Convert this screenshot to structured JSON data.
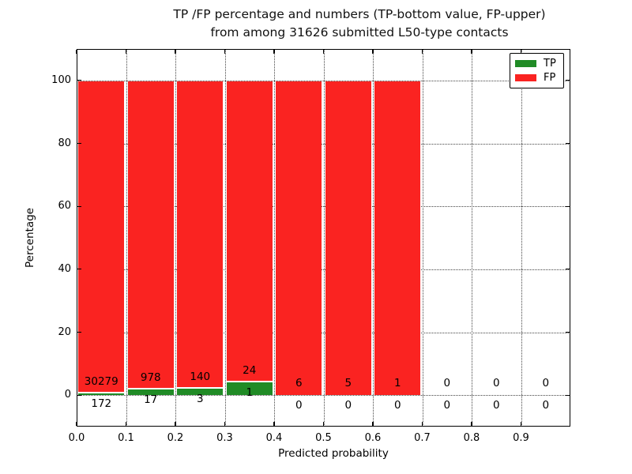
{
  "figure": {
    "title_line1": "TP /FP percentage and numbers (TP-bottom value, FP-upper)",
    "title_line2": "from among 31626 submitted L50-type contacts"
  },
  "chart_data": {
    "type": "bar",
    "stacked": true,
    "title": "TP /FP percentage and numbers (TP-bottom value, FP-upper)\nfrom among 31626 submitted L50-type contacts",
    "xlabel": "Predicted probability",
    "ylabel": "Percentage",
    "total_submitted": 31626,
    "xlim": [
      0.0,
      1.0
    ],
    "ylim": [
      -10,
      110
    ],
    "grid": "dotted",
    "legend_position": "upper right",
    "xtick_labels": [
      "0.0",
      "0.1",
      "0.2",
      "0.3",
      "0.4",
      "0.5",
      "0.6",
      "0.7",
      "0.8",
      "0.9"
    ],
    "xtick_values": [
      0.0,
      0.1,
      0.2,
      0.3,
      0.4,
      0.5,
      0.6,
      0.7,
      0.8,
      0.9
    ],
    "ytick_labels": [
      "0",
      "20",
      "40",
      "60",
      "80",
      "100"
    ],
    "ytick_values": [
      0,
      20,
      40,
      60,
      80,
      100
    ],
    "bin_width": 0.1,
    "bins": [
      {
        "range": "0.0-0.1",
        "tp": 172,
        "fp": 30279
      },
      {
        "range": "0.1-0.2",
        "tp": 17,
        "fp": 978
      },
      {
        "range": "0.2-0.3",
        "tp": 3,
        "fp": 140
      },
      {
        "range": "0.3-0.4",
        "tp": 1,
        "fp": 24
      },
      {
        "range": "0.4-0.5",
        "tp": 0,
        "fp": 6
      },
      {
        "range": "0.5-0.6",
        "tp": 0,
        "fp": 5
      },
      {
        "range": "0.6-0.7",
        "tp": 0,
        "fp": 1
      },
      {
        "range": "0.7-0.8",
        "tp": 0,
        "fp": 0
      },
      {
        "range": "0.8-0.9",
        "tp": 0,
        "fp": 0
      },
      {
        "range": "0.9-1.0",
        "tp": 0,
        "fp": 0
      }
    ],
    "series_note": "bars show TP% (green, bottom) and FP% (red, top) of each bin total; labels are raw counts (FP above boundary, TP below)",
    "legend": [
      {
        "label": "TP",
        "color": "#208b26"
      },
      {
        "label": "FP",
        "color": "#fa2321"
      }
    ],
    "colors": {
      "tp": "#208b26",
      "fp": "#fa2321",
      "bar_edge": "#ffffff",
      "grid": "#444444",
      "axis": "#000000",
      "background": "#ffffff"
    }
  }
}
